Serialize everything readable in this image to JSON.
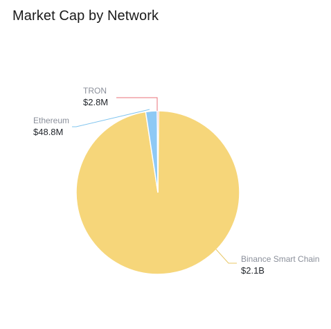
{
  "card": {
    "title": "Market Cap by Network"
  },
  "chart_data": {
    "type": "pie",
    "title": "Market Cap by Network",
    "slices": [
      {
        "name": "Binance Smart Chain",
        "value": 2100000000,
        "value_label": "$2.1B",
        "color": "#f6d67a",
        "connector_color": "#e8c766"
      },
      {
        "name": "Ethereum",
        "value": 48800000,
        "value_label": "$48.8M",
        "color": "#8ec9f5",
        "connector_color": "#7fc4ef"
      },
      {
        "name": "TRON",
        "value": 2800000,
        "value_label": "$2.8M",
        "color": "#f08a8a",
        "connector_color": "#e8707a"
      }
    ],
    "legend": "none"
  }
}
